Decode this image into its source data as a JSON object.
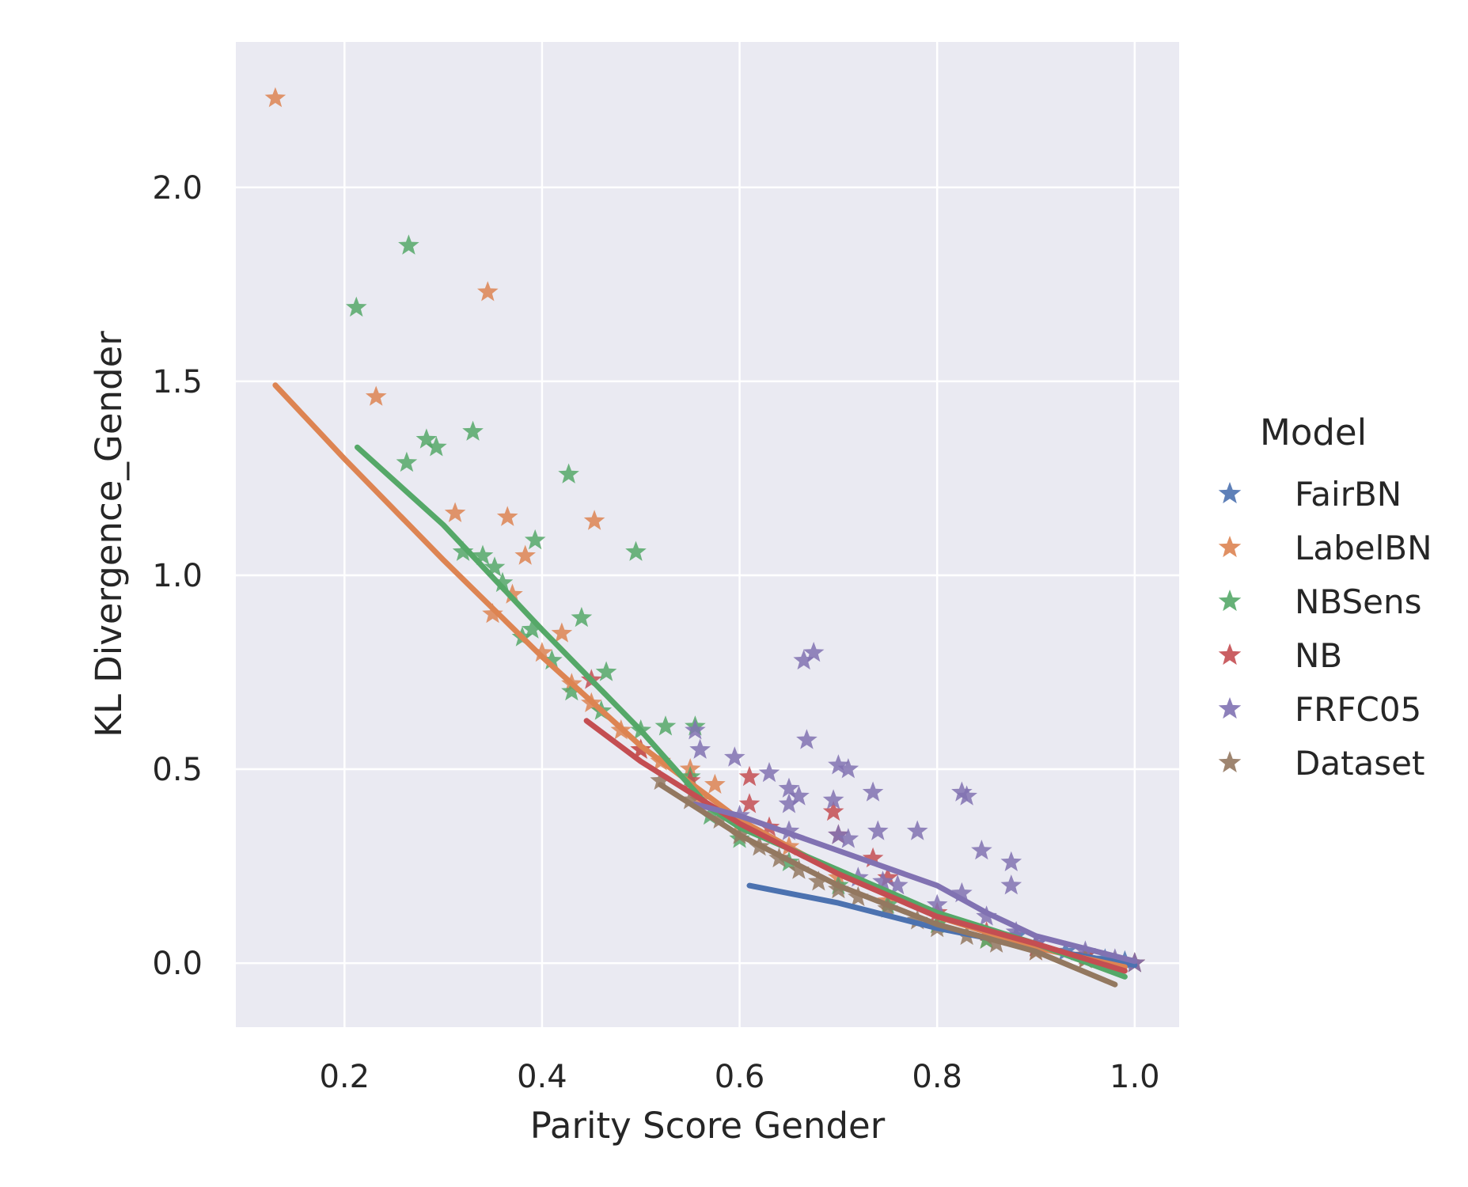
{
  "chart_data": {
    "type": "scatter",
    "xlabel": "Parity Score Gender",
    "ylabel": "KL Divergence_Gender",
    "xlim": [
      0.09,
      1.045
    ],
    "ylim": [
      -0.165,
      2.375
    ],
    "xticks": [
      {
        "value": 0.2,
        "label": "0.2"
      },
      {
        "value": 0.4,
        "label": "0.4"
      },
      {
        "value": 0.6,
        "label": "0.6"
      },
      {
        "value": 0.8,
        "label": "0.8"
      },
      {
        "value": 1.0,
        "label": "1.0"
      }
    ],
    "yticks": [
      {
        "value": 0.0,
        "label": "0.0"
      },
      {
        "value": 0.5,
        "label": "0.5"
      },
      {
        "value": 1.0,
        "label": "1.0"
      },
      {
        "value": 1.5,
        "label": "1.5"
      },
      {
        "value": 2.0,
        "label": "2.0"
      }
    ],
    "grid": true,
    "legend": {
      "title": "Model",
      "placement": "right"
    },
    "series": [
      {
        "name": "FairBN",
        "color": "#4c72b0",
        "points": [
          [
            0.88,
            0.07
          ],
          [
            0.9,
            0.05
          ],
          [
            0.93,
            0.03
          ],
          [
            0.95,
            0.02
          ],
          [
            0.97,
            0.01
          ],
          [
            0.99,
            0.005
          ],
          [
            1.0,
            0.0
          ]
        ],
        "trend": [
          [
            0.61,
            0.2
          ],
          [
            0.7,
            0.155
          ],
          [
            0.8,
            0.09
          ],
          [
            0.9,
            0.04
          ],
          [
            1.0,
            -0.005
          ]
        ]
      },
      {
        "name": "LabelBN",
        "color": "#dd8452",
        "points": [
          [
            0.13,
            2.23
          ],
          [
            0.345,
            1.73
          ],
          [
            0.232,
            1.46
          ],
          [
            0.312,
            1.16
          ],
          [
            0.365,
            1.15
          ],
          [
            0.453,
            1.14
          ],
          [
            0.383,
            1.05
          ],
          [
            0.37,
            0.95
          ],
          [
            0.42,
            0.85
          ],
          [
            0.35,
            0.9
          ],
          [
            0.4,
            0.8
          ],
          [
            0.43,
            0.72
          ],
          [
            0.45,
            0.67
          ],
          [
            0.48,
            0.6
          ],
          [
            0.5,
            0.55
          ],
          [
            0.52,
            0.52
          ],
          [
            0.55,
            0.5
          ],
          [
            0.575,
            0.46
          ],
          [
            0.56,
            0.42
          ],
          [
            0.6,
            0.36
          ],
          [
            0.65,
            0.3
          ],
          [
            0.7,
            0.22
          ],
          [
            0.75,
            0.16
          ],
          [
            0.8,
            0.1
          ],
          [
            0.85,
            0.06
          ],
          [
            0.9,
            0.03
          ],
          [
            0.95,
            0.01
          ],
          [
            1.0,
            0.0
          ]
        ],
        "trend": [
          [
            0.13,
            1.49
          ],
          [
            0.2,
            1.3
          ],
          [
            0.3,
            1.04
          ],
          [
            0.4,
            0.79
          ],
          [
            0.5,
            0.56
          ],
          [
            0.6,
            0.37
          ],
          [
            0.7,
            0.23
          ],
          [
            0.8,
            0.12
          ],
          [
            0.9,
            0.04
          ],
          [
            0.99,
            -0.01
          ]
        ]
      },
      {
        "name": "NBSens",
        "color": "#55a868",
        "points": [
          [
            0.265,
            1.85
          ],
          [
            0.212,
            1.69
          ],
          [
            0.33,
            1.37
          ],
          [
            0.283,
            1.35
          ],
          [
            0.293,
            1.33
          ],
          [
            0.263,
            1.29
          ],
          [
            0.427,
            1.26
          ],
          [
            0.393,
            1.09
          ],
          [
            0.495,
            1.06
          ],
          [
            0.32,
            1.06
          ],
          [
            0.34,
            1.05
          ],
          [
            0.352,
            1.02
          ],
          [
            0.36,
            0.98
          ],
          [
            0.44,
            0.89
          ],
          [
            0.39,
            0.86
          ],
          [
            0.38,
            0.84
          ],
          [
            0.465,
            0.75
          ],
          [
            0.41,
            0.78
          ],
          [
            0.43,
            0.7
          ],
          [
            0.46,
            0.65
          ],
          [
            0.5,
            0.6
          ],
          [
            0.525,
            0.61
          ],
          [
            0.555,
            0.61
          ],
          [
            0.55,
            0.48
          ],
          [
            0.57,
            0.38
          ],
          [
            0.6,
            0.32
          ],
          [
            0.65,
            0.26
          ],
          [
            0.7,
            0.2
          ],
          [
            0.75,
            0.15
          ],
          [
            0.8,
            0.1
          ],
          [
            0.85,
            0.06
          ],
          [
            0.9,
            0.04
          ],
          [
            0.95,
            0.02
          ],
          [
            1.0,
            0.0
          ]
        ],
        "trend": [
          [
            0.213,
            1.33
          ],
          [
            0.3,
            1.13
          ],
          [
            0.4,
            0.86
          ],
          [
            0.5,
            0.6
          ],
          [
            0.57,
            0.4
          ],
          [
            0.6,
            0.35
          ],
          [
            0.7,
            0.24
          ],
          [
            0.8,
            0.13
          ],
          [
            0.9,
            0.05
          ],
          [
            0.99,
            -0.035
          ]
        ]
      },
      {
        "name": "NB",
        "color": "#c44e52",
        "points": [
          [
            0.45,
            0.73
          ],
          [
            0.5,
            0.55
          ],
          [
            0.55,
            0.47
          ],
          [
            0.61,
            0.48
          ],
          [
            0.61,
            0.41
          ],
          [
            0.63,
            0.35
          ],
          [
            0.695,
            0.39
          ],
          [
            0.7,
            0.33
          ],
          [
            0.735,
            0.27
          ],
          [
            0.75,
            0.22
          ],
          [
            0.8,
            0.13
          ],
          [
            0.85,
            0.08
          ],
          [
            0.9,
            0.04
          ],
          [
            0.95,
            0.02
          ],
          [
            1.0,
            0.0
          ]
        ],
        "trend": [
          [
            0.445,
            0.625
          ],
          [
            0.5,
            0.52
          ],
          [
            0.6,
            0.36
          ],
          [
            0.7,
            0.23
          ],
          [
            0.8,
            0.12
          ],
          [
            0.9,
            0.05
          ],
          [
            0.99,
            -0.02
          ]
        ]
      },
      {
        "name": "FRFC05",
        "color": "#8172b2",
        "points": [
          [
            0.675,
            0.8
          ],
          [
            0.665,
            0.78
          ],
          [
            0.668,
            0.575
          ],
          [
            0.555,
            0.6
          ],
          [
            0.56,
            0.55
          ],
          [
            0.595,
            0.53
          ],
          [
            0.63,
            0.49
          ],
          [
            0.7,
            0.51
          ],
          [
            0.71,
            0.5
          ],
          [
            0.65,
            0.45
          ],
          [
            0.66,
            0.43
          ],
          [
            0.65,
            0.41
          ],
          [
            0.695,
            0.42
          ],
          [
            0.735,
            0.44
          ],
          [
            0.825,
            0.44
          ],
          [
            0.83,
            0.43
          ],
          [
            0.6,
            0.38
          ],
          [
            0.65,
            0.34
          ],
          [
            0.7,
            0.33
          ],
          [
            0.71,
            0.32
          ],
          [
            0.74,
            0.34
          ],
          [
            0.78,
            0.34
          ],
          [
            0.845,
            0.29
          ],
          [
            0.875,
            0.26
          ],
          [
            0.72,
            0.22
          ],
          [
            0.745,
            0.21
          ],
          [
            0.76,
            0.2
          ],
          [
            0.875,
            0.2
          ],
          [
            0.825,
            0.18
          ],
          [
            0.8,
            0.15
          ],
          [
            0.85,
            0.12
          ],
          [
            0.88,
            0.08
          ],
          [
            0.9,
            0.05
          ],
          [
            0.95,
            0.03
          ],
          [
            0.98,
            0.01
          ],
          [
            1.0,
            0.0
          ]
        ],
        "trend": [
          [
            0.555,
            0.41
          ],
          [
            0.6,
            0.38
          ],
          [
            0.7,
            0.29
          ],
          [
            0.8,
            0.2
          ],
          [
            0.85,
            0.13
          ],
          [
            0.9,
            0.07
          ],
          [
            1.0,
            0.005
          ]
        ]
      },
      {
        "name": "Dataset",
        "color": "#937860",
        "points": [
          [
            0.52,
            0.47
          ],
          [
            0.55,
            0.42
          ],
          [
            0.58,
            0.37
          ],
          [
            0.6,
            0.33
          ],
          [
            0.62,
            0.3
          ],
          [
            0.64,
            0.27
          ],
          [
            0.66,
            0.24
          ],
          [
            0.68,
            0.21
          ],
          [
            0.7,
            0.19
          ],
          [
            0.72,
            0.17
          ],
          [
            0.75,
            0.14
          ],
          [
            0.78,
            0.11
          ],
          [
            0.8,
            0.09
          ],
          [
            0.83,
            0.07
          ],
          [
            0.86,
            0.05
          ],
          [
            0.9,
            0.03
          ],
          [
            0.95,
            0.01
          ],
          [
            0.98,
            0.0
          ]
        ],
        "trend": [
          [
            0.52,
            0.46
          ],
          [
            0.6,
            0.33
          ],
          [
            0.7,
            0.2
          ],
          [
            0.8,
            0.1
          ],
          [
            0.9,
            0.03
          ],
          [
            0.98,
            -0.055
          ]
        ]
      }
    ]
  }
}
